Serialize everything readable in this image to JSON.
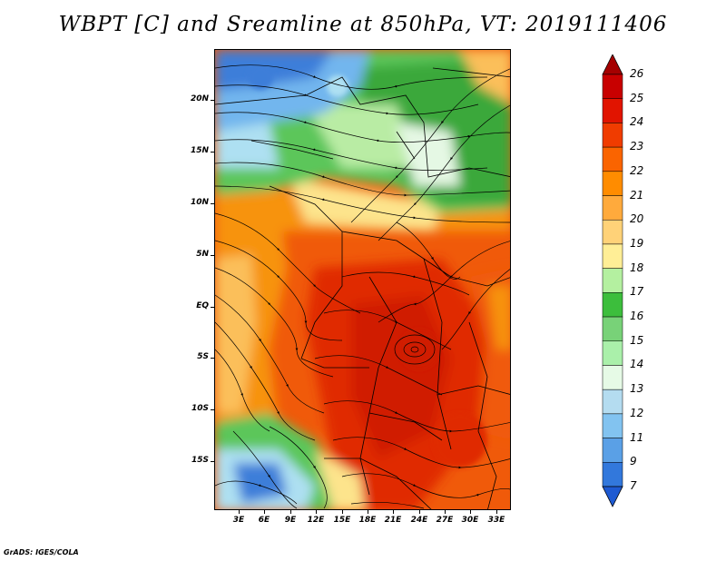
{
  "title": "WBPT [C] and Sreamline at 850hPa, VT: 2019111406",
  "footer": "GrADS: IGES/COLA",
  "lat_labels": [
    "20N",
    "15N",
    "10N",
    "5N",
    "EQ",
    "5S",
    "10S",
    "15S"
  ],
  "lon_labels": [
    "3E",
    "6E",
    "9E",
    "12E",
    "15E",
    "18E",
    "21E",
    "24E",
    "27E",
    "30E",
    "33E"
  ],
  "colorbar": {
    "levels": [
      "26",
      "25",
      "24",
      "23",
      "22",
      "21",
      "20",
      "19",
      "18",
      "17",
      "16",
      "15",
      "14",
      "13",
      "12",
      "11",
      "9",
      "7"
    ],
    "colors": [
      "#a50000",
      "#c80000",
      "#e11400",
      "#f03c00",
      "#fa6400",
      "#ff8c00",
      "#ffaa3c",
      "#ffd278",
      "#ffee96",
      "#b4f0a0",
      "#3cbe3c",
      "#78d278",
      "#aaf0aa",
      "#e6fae6",
      "#b4dcf0",
      "#82c3f0",
      "#5aa0e6",
      "#3278dc",
      "#1e5ad2"
    ]
  },
  "field_colors": {
    "hot": "#e02a00",
    "warm": "#f05a0a",
    "orange": "#f7930f",
    "light_orange": "#fbbf5a",
    "yellow": "#fde48c",
    "light_green": "#b9eca4",
    "green": "#5cc65a",
    "dark_green": "#3aa83a",
    "pale": "#e5f8e4",
    "light_blue": "#aee0f2",
    "blue": "#72b6ee",
    "deep_blue": "#3d7ed9"
  }
}
